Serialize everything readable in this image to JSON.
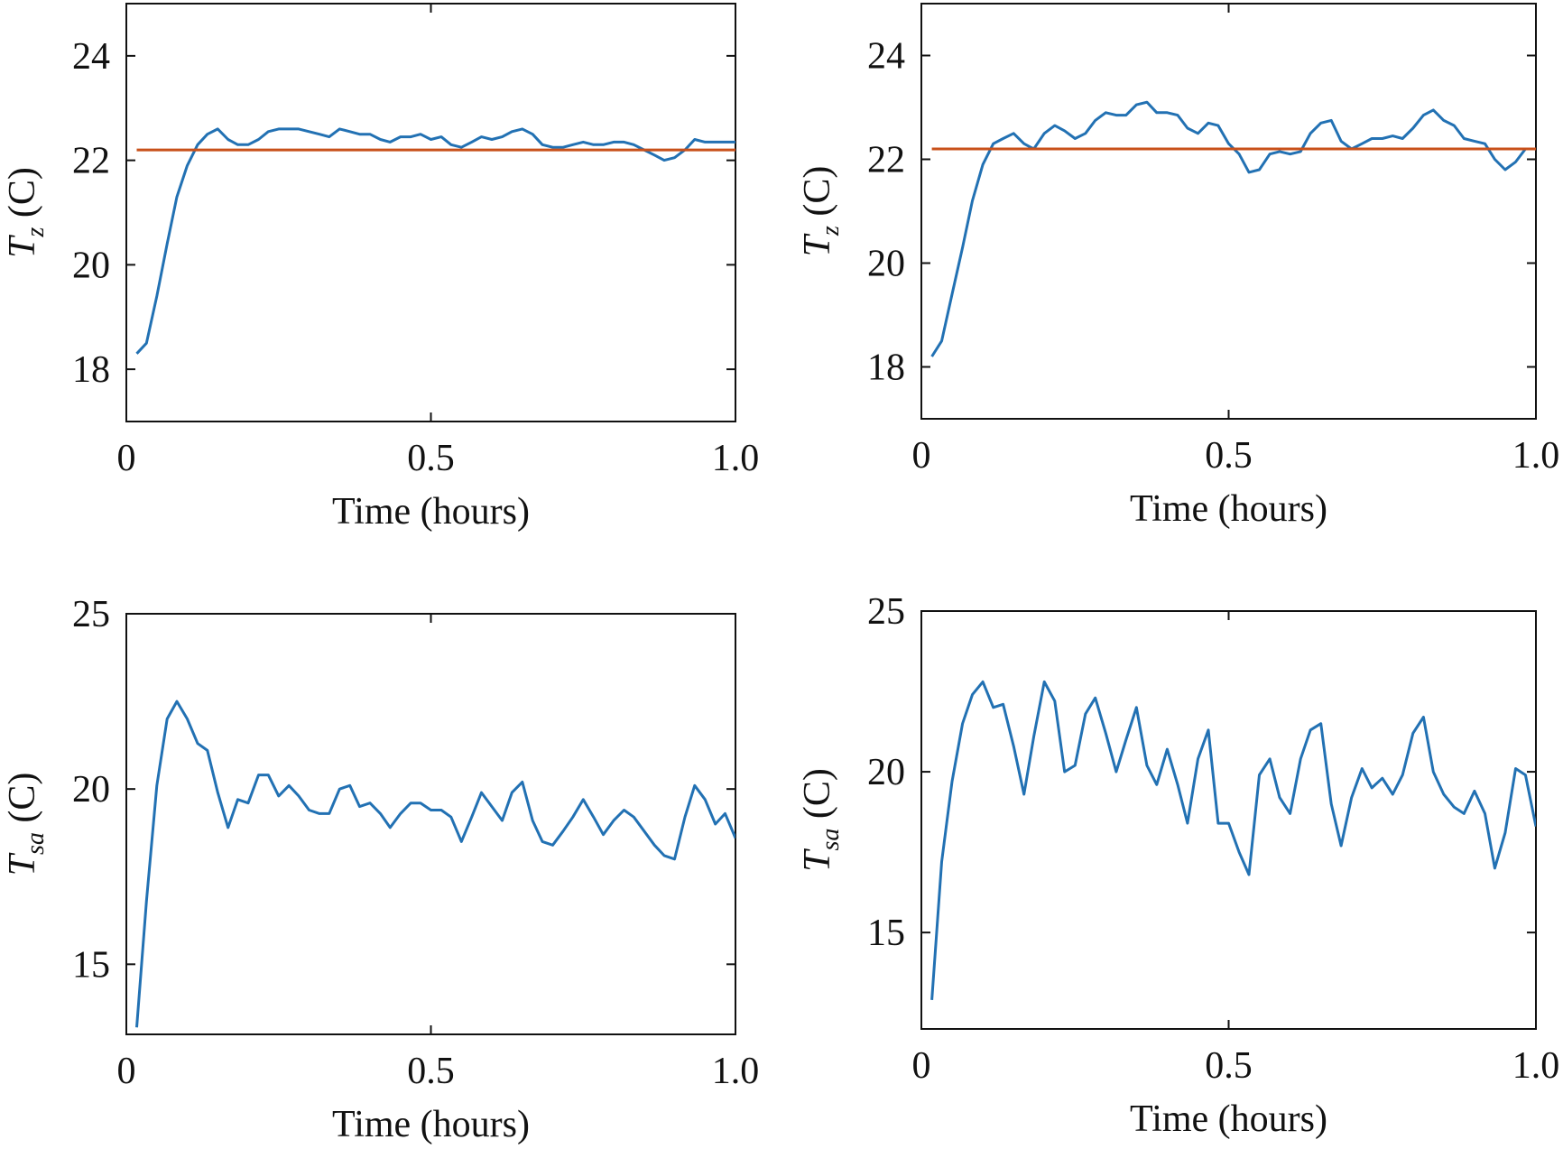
{
  "figure": {
    "layout": "2x2 grid"
  },
  "chart_data": [
    {
      "type": "line",
      "xlabel": "Time (hours)",
      "ylabel": {
        "symbol": "T",
        "subscript": "z",
        "unit": "(C)"
      },
      "xlim": [
        0,
        1.0
      ],
      "ylim": [
        17,
        25
      ],
      "xticks": [
        0,
        0.5,
        1.0
      ],
      "xtick_labels": [
        "0",
        "0.5",
        "1.0"
      ],
      "yticks": [
        18,
        20,
        22,
        24
      ],
      "ytick_labels": [
        "18",
        "20",
        "22",
        "24"
      ],
      "grid": false,
      "colors": {
        "series": "#2271b3",
        "setpoint": "#c8501a"
      },
      "series": [
        {
          "x": [
            0.017,
            0.033,
            0.05,
            0.067,
            0.083,
            0.1,
            0.117,
            0.133,
            0.15,
            0.167,
            0.183,
            0.2,
            0.217,
            0.233,
            0.25,
            0.267,
            0.283,
            0.3,
            0.317,
            0.333,
            0.35,
            0.367,
            0.383,
            0.4,
            0.417,
            0.433,
            0.45,
            0.467,
            0.483,
            0.5,
            0.517,
            0.533,
            0.55,
            0.567,
            0.583,
            0.6,
            0.617,
            0.633,
            0.65,
            0.667,
            0.683,
            0.7,
            0.717,
            0.733,
            0.75,
            0.767,
            0.783,
            0.8,
            0.817,
            0.833,
            0.85,
            0.867,
            0.883,
            0.9,
            0.917,
            0.933,
            0.95,
            0.967,
            0.983,
            1.0
          ],
          "y": [
            18.3,
            18.5,
            19.4,
            20.4,
            21.3,
            21.9,
            22.3,
            22.5,
            22.6,
            22.4,
            22.3,
            22.3,
            22.4,
            22.55,
            22.6,
            22.6,
            22.6,
            22.55,
            22.5,
            22.45,
            22.6,
            22.55,
            22.5,
            22.5,
            22.4,
            22.35,
            22.45,
            22.45,
            22.5,
            22.4,
            22.45,
            22.3,
            22.25,
            22.35,
            22.45,
            22.4,
            22.45,
            22.55,
            22.6,
            22.5,
            22.3,
            22.25,
            22.25,
            22.3,
            22.35,
            22.3,
            22.3,
            22.35,
            22.35,
            22.3,
            22.2,
            22.1,
            22.0,
            22.05,
            22.2,
            22.4,
            22.35,
            22.35,
            22.35,
            22.35
          ]
        },
        {
          "x": [
            0.017,
            1.0
          ],
          "y": [
            22.2,
            22.2
          ]
        }
      ]
    },
    {
      "type": "line",
      "xlabel": "Time (hours)",
      "ylabel": {
        "symbol": "T",
        "subscript": "z",
        "unit": "(C)"
      },
      "xlim": [
        0,
        1.0
      ],
      "ylim": [
        17,
        25
      ],
      "xticks": [
        0,
        0.5,
        1.0
      ],
      "xtick_labels": [
        "0",
        "0.5",
        "1.0"
      ],
      "yticks": [
        18,
        20,
        22,
        24
      ],
      "ytick_labels": [
        "18",
        "20",
        "22",
        "24"
      ],
      "grid": false,
      "colors": {
        "series": "#2271b3",
        "setpoint": "#c8501a"
      },
      "series": [
        {
          "x": [
            0.017,
            0.033,
            0.05,
            0.067,
            0.083,
            0.1,
            0.117,
            0.133,
            0.15,
            0.167,
            0.183,
            0.2,
            0.217,
            0.233,
            0.25,
            0.267,
            0.283,
            0.3,
            0.317,
            0.333,
            0.35,
            0.367,
            0.383,
            0.4,
            0.417,
            0.433,
            0.45,
            0.467,
            0.483,
            0.5,
            0.517,
            0.533,
            0.55,
            0.567,
            0.583,
            0.6,
            0.617,
            0.633,
            0.65,
            0.667,
            0.683,
            0.7,
            0.717,
            0.733,
            0.75,
            0.767,
            0.783,
            0.8,
            0.817,
            0.833,
            0.85,
            0.867,
            0.883,
            0.9,
            0.917,
            0.933,
            0.95,
            0.967,
            0.983,
            1.0
          ],
          "y": [
            18.2,
            18.5,
            19.4,
            20.3,
            21.2,
            21.9,
            22.3,
            22.4,
            22.5,
            22.3,
            22.2,
            22.5,
            22.65,
            22.55,
            22.4,
            22.5,
            22.75,
            22.9,
            22.85,
            22.85,
            23.05,
            23.1,
            22.9,
            22.9,
            22.85,
            22.6,
            22.5,
            22.7,
            22.65,
            22.3,
            22.1,
            21.75,
            21.8,
            22.1,
            22.15,
            22.1,
            22.15,
            22.5,
            22.7,
            22.75,
            22.35,
            22.2,
            22.3,
            22.4,
            22.4,
            22.45,
            22.4,
            22.6,
            22.85,
            22.95,
            22.75,
            22.65,
            22.4,
            22.35,
            22.3,
            22.0,
            21.8,
            21.95,
            22.2,
            22.2
          ]
        },
        {
          "x": [
            0.017,
            1.0
          ],
          "y": [
            22.2,
            22.2
          ]
        }
      ]
    },
    {
      "type": "line",
      "xlabel": "Time (hours)",
      "ylabel": {
        "symbol": "T",
        "subscript": "sa",
        "unit": "(C)"
      },
      "xlim": [
        0,
        1.0
      ],
      "ylim": [
        13,
        25
      ],
      "xticks": [
        0,
        0.5,
        1.0
      ],
      "xtick_labels": [
        "0",
        "0.5",
        "1.0"
      ],
      "yticks": [
        15,
        20,
        25
      ],
      "ytick_labels": [
        "15",
        "20",
        "25"
      ],
      "grid": false,
      "colors": {
        "series": "#2271b3"
      },
      "series": [
        {
          "x": [
            0.017,
            0.033,
            0.05,
            0.067,
            0.083,
            0.1,
            0.117,
            0.133,
            0.15,
            0.167,
            0.183,
            0.2,
            0.217,
            0.233,
            0.25,
            0.267,
            0.283,
            0.3,
            0.317,
            0.333,
            0.35,
            0.367,
            0.383,
            0.4,
            0.417,
            0.433,
            0.45,
            0.467,
            0.483,
            0.5,
            0.517,
            0.533,
            0.55,
            0.567,
            0.583,
            0.6,
            0.617,
            0.633,
            0.65,
            0.667,
            0.683,
            0.7,
            0.717,
            0.733,
            0.75,
            0.767,
            0.783,
            0.8,
            0.817,
            0.833,
            0.85,
            0.867,
            0.883,
            0.9,
            0.917,
            0.933,
            0.95,
            0.967,
            0.983,
            1.0
          ],
          "y": [
            13.2,
            16.8,
            20.1,
            22.0,
            22.5,
            22.0,
            21.3,
            21.1,
            19.9,
            18.9,
            19.7,
            19.6,
            20.4,
            20.4,
            19.8,
            20.1,
            19.8,
            19.4,
            19.3,
            19.3,
            20.0,
            20.1,
            19.5,
            19.6,
            19.3,
            18.9,
            19.3,
            19.6,
            19.6,
            19.4,
            19.4,
            19.2,
            18.5,
            19.2,
            19.9,
            19.5,
            19.1,
            19.9,
            20.2,
            19.1,
            18.5,
            18.4,
            18.8,
            19.2,
            19.7,
            19.2,
            18.7,
            19.1,
            19.4,
            19.2,
            18.8,
            18.4,
            18.1,
            18.0,
            19.2,
            20.1,
            19.7,
            19.0,
            19.3,
            18.6
          ]
        }
      ]
    },
    {
      "type": "line",
      "xlabel": "Time (hours)",
      "ylabel": {
        "symbol": "T",
        "subscript": "sa",
        "unit": "(C)"
      },
      "xlim": [
        0,
        1.0
      ],
      "ylim": [
        12,
        25
      ],
      "xticks": [
        0,
        0.5,
        1.0
      ],
      "xtick_labels": [
        "0",
        "0.5",
        "1.0"
      ],
      "yticks": [
        15,
        20,
        25
      ],
      "ytick_labels": [
        "15",
        "20",
        "25"
      ],
      "grid": false,
      "colors": {
        "series": "#2271b3"
      },
      "series": [
        {
          "x": [
            0.017,
            0.033,
            0.05,
            0.067,
            0.083,
            0.1,
            0.117,
            0.133,
            0.15,
            0.167,
            0.183,
            0.2,
            0.217,
            0.233,
            0.25,
            0.267,
            0.283,
            0.3,
            0.317,
            0.333,
            0.35,
            0.367,
            0.383,
            0.4,
            0.417,
            0.433,
            0.45,
            0.467,
            0.483,
            0.5,
            0.517,
            0.533,
            0.55,
            0.567,
            0.583,
            0.6,
            0.617,
            0.633,
            0.65,
            0.667,
            0.683,
            0.7,
            0.717,
            0.733,
            0.75,
            0.767,
            0.783,
            0.8,
            0.817,
            0.833,
            0.85,
            0.867,
            0.883,
            0.9,
            0.917,
            0.933,
            0.95,
            0.967,
            0.983,
            1.0
          ],
          "y": [
            12.9,
            17.2,
            19.7,
            21.5,
            22.4,
            22.8,
            22.0,
            22.1,
            20.8,
            19.3,
            21.1,
            22.8,
            22.2,
            20.0,
            20.2,
            21.8,
            22.3,
            21.2,
            20.0,
            21.0,
            22.0,
            20.2,
            19.6,
            20.7,
            19.6,
            18.4,
            20.4,
            21.3,
            18.4,
            18.4,
            17.5,
            16.8,
            19.9,
            20.4,
            19.2,
            18.7,
            20.4,
            21.3,
            21.5,
            19.0,
            17.7,
            19.2,
            20.1,
            19.5,
            19.8,
            19.3,
            19.9,
            21.2,
            21.7,
            20.0,
            19.3,
            18.9,
            18.7,
            19.4,
            18.7,
            17.0,
            18.1,
            20.1,
            19.9,
            18.3
          ]
        }
      ]
    }
  ]
}
